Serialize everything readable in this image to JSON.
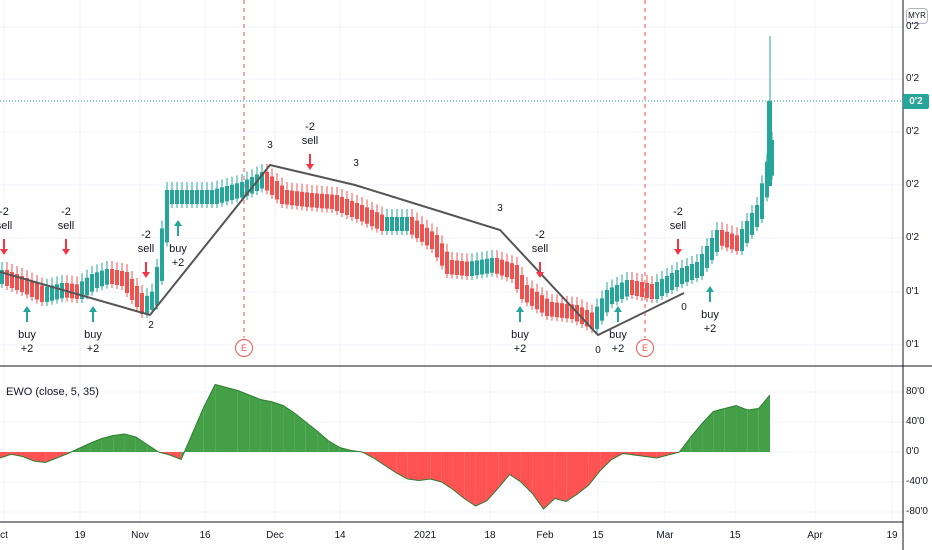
{
  "currency_badge": "MYR",
  "indicator_label": "EWO (close, 5, 35)",
  "price_axis_labels": [
    "0'2",
    "0'2",
    "0'2",
    "0'2",
    "0'2",
    "0'1",
    "0'1",
    "0'1"
  ],
  "current_price_label": "0'2",
  "ewo_axis_labels": [
    "80'0",
    "40'0",
    "0'0",
    "-40'0",
    "-80'0"
  ],
  "time_axis_labels": [
    "ct",
    "19",
    "Nov",
    "16",
    "Dec",
    "14",
    "2021",
    "18",
    "Feb",
    "15",
    "Mar",
    "15",
    "Apr",
    "19"
  ],
  "earnings_marker": "E",
  "signals": [
    {
      "type": "sell",
      "label": "-2\nsell"
    },
    {
      "type": "sell",
      "label": "-2\nsell"
    },
    {
      "type": "sell",
      "label": "-2\nsell"
    },
    {
      "type": "sell",
      "label": "-2\nsell"
    },
    {
      "type": "sell",
      "label": "-2\nsell"
    },
    {
      "type": "sell",
      "label": "-2\nsell"
    },
    {
      "type": "buy",
      "label": "buy\n+2"
    },
    {
      "type": "buy",
      "label": "buy\n+2"
    },
    {
      "type": "buy",
      "label": "buy\n+2"
    },
    {
      "type": "buy",
      "label": "buy\n+2"
    },
    {
      "type": "buy",
      "label": "buy\n+2"
    },
    {
      "type": "buy",
      "label": "buy\n+2"
    }
  ],
  "pivots": [
    "2",
    "3",
    "3",
    "3",
    "0",
    "0"
  ],
  "colors": {
    "up": "#26a69a",
    "down": "#ef5350",
    "zigzag": "#555555",
    "ewo_pos": "#43a047",
    "ewo_neg": "#ff5252",
    "buy_arrow": "#26a69a",
    "sell_arrow": "#f23645"
  },
  "chart_data": [
    {
      "type": "candlestick",
      "title": "",
      "x_ticks": [
        "ct",
        "19",
        "Nov",
        "16",
        "Dec",
        "14",
        "2021",
        "18",
        "Feb",
        "15",
        "Mar",
        "15",
        "Apr",
        "19"
      ],
      "y_ticks": [
        "0'2",
        "0'2",
        "0'2",
        "0'2",
        "0'2",
        "0'1",
        "0'1",
        "0'1"
      ],
      "zigzag": [
        2,
        3,
        3,
        3,
        0,
        0
      ]
    },
    {
      "type": "area",
      "title": "EWO (close, 5, 35)",
      "y_ticks": [
        80,
        40,
        0,
        -40,
        -80
      ],
      "ylim": [
        -90,
        95
      ],
      "values": [
        -8,
        -3,
        -6,
        -12,
        -14,
        -8,
        -2,
        5,
        12,
        18,
        22,
        24,
        20,
        10,
        0,
        -4,
        -10,
        25,
        60,
        90,
        86,
        82,
        76,
        70,
        67,
        62,
        52,
        40,
        28,
        15,
        6,
        2,
        0,
        -8,
        -18,
        -28,
        -36,
        -38,
        -36,
        -40,
        -50,
        -62,
        -72,
        -65,
        -48,
        -30,
        -40,
        -55,
        -76,
        -62,
        -66,
        -56,
        -44,
        -25,
        -10,
        -2,
        -4,
        -6,
        -8,
        -4,
        0,
        20,
        38,
        54,
        58,
        62,
        56,
        58,
        76
      ]
    }
  ]
}
